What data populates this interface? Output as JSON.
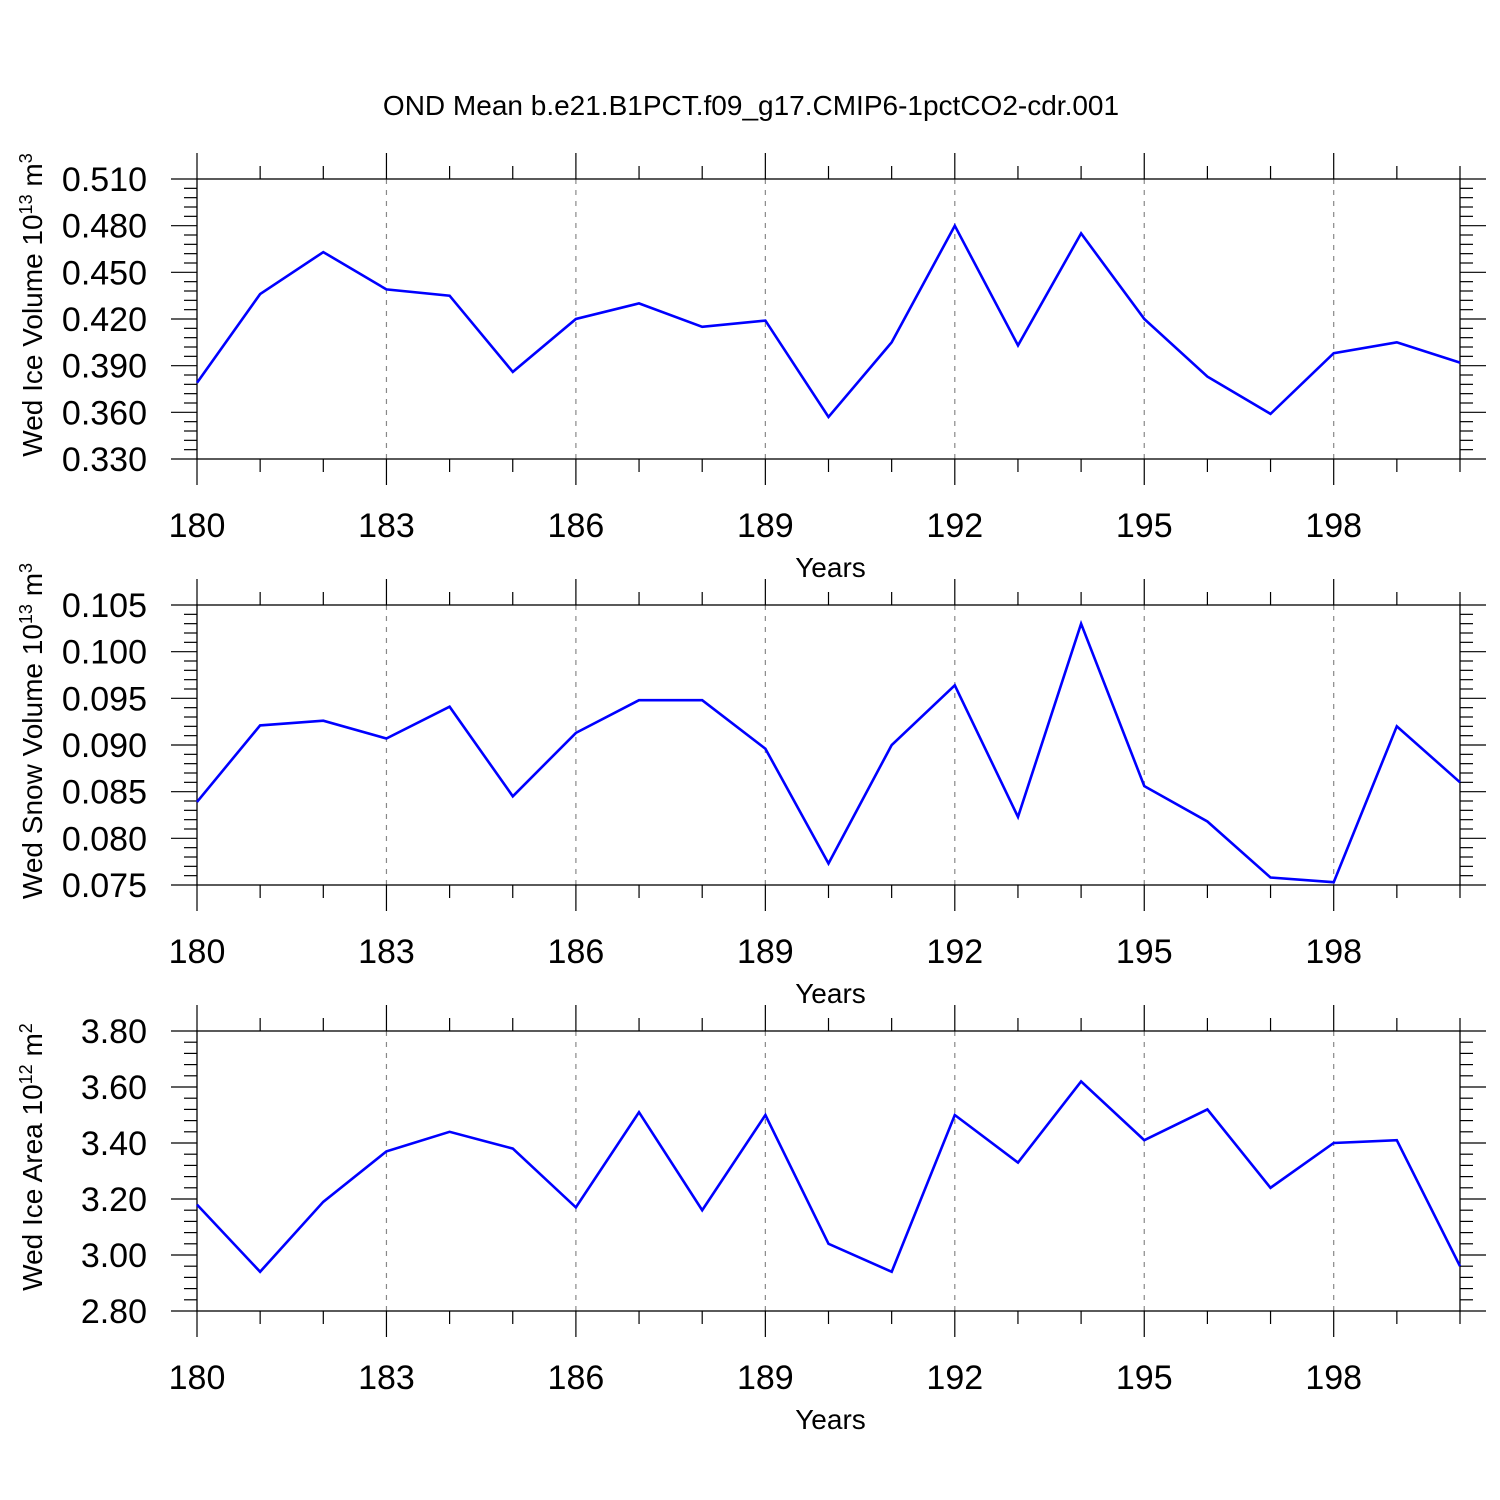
{
  "title": "OND Mean b.e21.B1PCT.f09_g17.CMIP6-1pctCO2-cdr.001",
  "colors": {
    "line": "#0000ff",
    "axis": "#000000",
    "grid": "#888888"
  },
  "chart_data": [
    {
      "type": "line",
      "ylabel": "Wed Ice Volume 10",
      "ylabel_exp": "13",
      "ylabel_unit": " m",
      "ylabel_unit_exp": "3",
      "xlabel": "Years",
      "xlim": [
        180,
        200
      ],
      "ylim": [
        0.33,
        0.51
      ],
      "xticks": [
        180,
        183,
        186,
        189,
        192,
        195,
        198
      ],
      "xtick_labels": [
        "180",
        "183",
        "186",
        "189",
        "192",
        "195",
        "198"
      ],
      "yticks": [
        0.33,
        0.36,
        0.39,
        0.42,
        0.45,
        0.48,
        0.51
      ],
      "ytick_labels": [
        "0.330",
        "0.360",
        "0.390",
        "0.420",
        "0.450",
        "0.480",
        "0.510"
      ],
      "grid": "vertical dashed at major x ticks",
      "x": [
        180,
        181,
        182,
        183,
        184,
        185,
        186,
        187,
        188,
        189,
        190,
        191,
        192,
        193,
        194,
        195,
        196,
        197,
        198,
        199,
        200
      ],
      "values": [
        0.379,
        0.436,
        0.463,
        0.439,
        0.435,
        0.386,
        0.42,
        0.43,
        0.415,
        0.419,
        0.357,
        0.405,
        0.48,
        0.403,
        0.475,
        0.42,
        0.383,
        0.359,
        0.398,
        0.405,
        0.392
      ]
    },
    {
      "type": "line",
      "ylabel": "Wed Snow Volume 10",
      "ylabel_exp": "13",
      "ylabel_unit": " m",
      "ylabel_unit_exp": "3",
      "xlabel": "Years",
      "xlim": [
        180,
        200
      ],
      "ylim": [
        0.075,
        0.105
      ],
      "xticks": [
        180,
        183,
        186,
        189,
        192,
        195,
        198
      ],
      "xtick_labels": [
        "180",
        "183",
        "186",
        "189",
        "192",
        "195",
        "198"
      ],
      "yticks": [
        0.075,
        0.08,
        0.085,
        0.09,
        0.095,
        0.1,
        0.105
      ],
      "ytick_labels": [
        "0.075",
        "0.080",
        "0.085",
        "0.090",
        "0.095",
        "0.100",
        "0.105"
      ],
      "grid": "vertical dashed at major x ticks",
      "x": [
        180,
        181,
        182,
        183,
        184,
        185,
        186,
        187,
        188,
        189,
        190,
        191,
        192,
        193,
        194,
        195,
        196,
        197,
        198,
        199,
        200
      ],
      "values": [
        0.0839,
        0.0921,
        0.0926,
        0.0907,
        0.0941,
        0.0845,
        0.0913,
        0.0948,
        0.0948,
        0.0896,
        0.0773,
        0.09,
        0.0964,
        0.0823,
        0.103,
        0.0856,
        0.0818,
        0.0758,
        0.0753,
        0.092,
        0.086
      ]
    },
    {
      "type": "line",
      "ylabel": "Wed Ice Area 10",
      "ylabel_exp": "12",
      "ylabel_unit": " m",
      "ylabel_unit_exp": "2",
      "xlabel": "Years",
      "xlim": [
        180,
        200
      ],
      "ylim": [
        2.8,
        3.8
      ],
      "xticks": [
        180,
        183,
        186,
        189,
        192,
        195,
        198
      ],
      "xtick_labels": [
        "180",
        "183",
        "186",
        "189",
        "192",
        "195",
        "198"
      ],
      "yticks": [
        2.8,
        3.0,
        3.2,
        3.4,
        3.6,
        3.8
      ],
      "ytick_labels": [
        "2.80",
        "3.00",
        "3.20",
        "3.40",
        "3.60",
        "3.80"
      ],
      "grid": "vertical dashed at major x ticks",
      "x": [
        180,
        181,
        182,
        183,
        184,
        185,
        186,
        187,
        188,
        189,
        190,
        191,
        192,
        193,
        194,
        195,
        196,
        197,
        198,
        199,
        200
      ],
      "values": [
        3.18,
        2.94,
        3.19,
        3.37,
        3.44,
        3.38,
        3.17,
        3.51,
        3.16,
        3.5,
        3.04,
        2.94,
        3.5,
        3.33,
        3.62,
        3.41,
        3.52,
        3.24,
        3.4,
        3.41,
        2.96
      ]
    }
  ]
}
